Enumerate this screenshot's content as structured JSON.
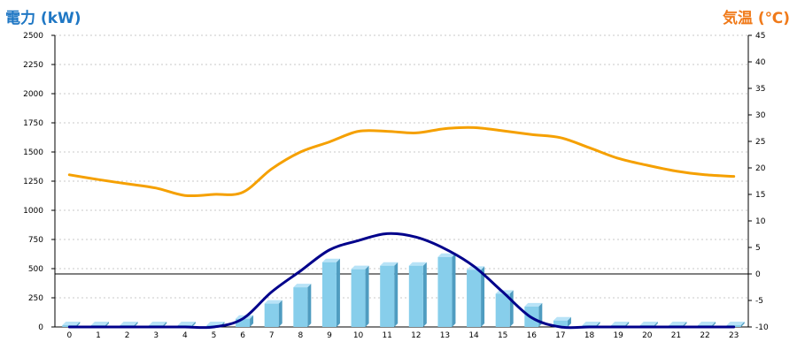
{
  "chart_data": {
    "type": "bar",
    "left_axis_title": "電力 (kW)",
    "right_axis_title": "気温 (℃)",
    "categories": [
      "0",
      "1",
      "2",
      "3",
      "4",
      "5",
      "6",
      "7",
      "8",
      "9",
      "10",
      "11",
      "12",
      "13",
      "14",
      "15",
      "16",
      "17",
      "18",
      "19",
      "20",
      "21",
      "22",
      "23"
    ],
    "y_left": {
      "min": 0,
      "max": 2500,
      "ticks": [
        0,
        250,
        500,
        750,
        1000,
        1250,
        1500,
        1750,
        2000,
        2250,
        2500
      ]
    },
    "y_right": {
      "min": -10,
      "max": 45,
      "ticks": [
        -10,
        -5,
        0,
        5,
        10,
        15,
        20,
        25,
        30,
        35,
        40,
        45
      ]
    },
    "grid": true,
    "bars": {
      "axis": "left",
      "color": "#87ceeb",
      "values": [
        15,
        15,
        15,
        15,
        15,
        15,
        70,
        200,
        340,
        555,
        495,
        525,
        525,
        600,
        490,
        285,
        175,
        55,
        15,
        15,
        15,
        15,
        15,
        15
      ]
    },
    "lines": [
      {
        "axis": "right",
        "color": "#f5a000",
        "values": [
          18.7,
          17.8,
          17.0,
          16.2,
          14.8,
          15.0,
          15.4,
          19.8,
          23.0,
          24.9,
          26.9,
          26.9,
          26.6,
          27.4,
          27.6,
          27.0,
          26.3,
          25.7,
          23.8,
          21.8,
          20.5,
          19.4,
          18.7,
          18.4
        ]
      },
      {
        "axis": "left",
        "color": "#00008b",
        "values": [
          0,
          0,
          0,
          0,
          0,
          0,
          70,
          300,
          480,
          660,
          740,
          800,
          770,
          670,
          520,
          300,
          80,
          0,
          0,
          0,
          0,
          0,
          0,
          0
        ]
      }
    ],
    "reference_line": {
      "axis": "right",
      "value": 0,
      "color": "#000000"
    }
  }
}
